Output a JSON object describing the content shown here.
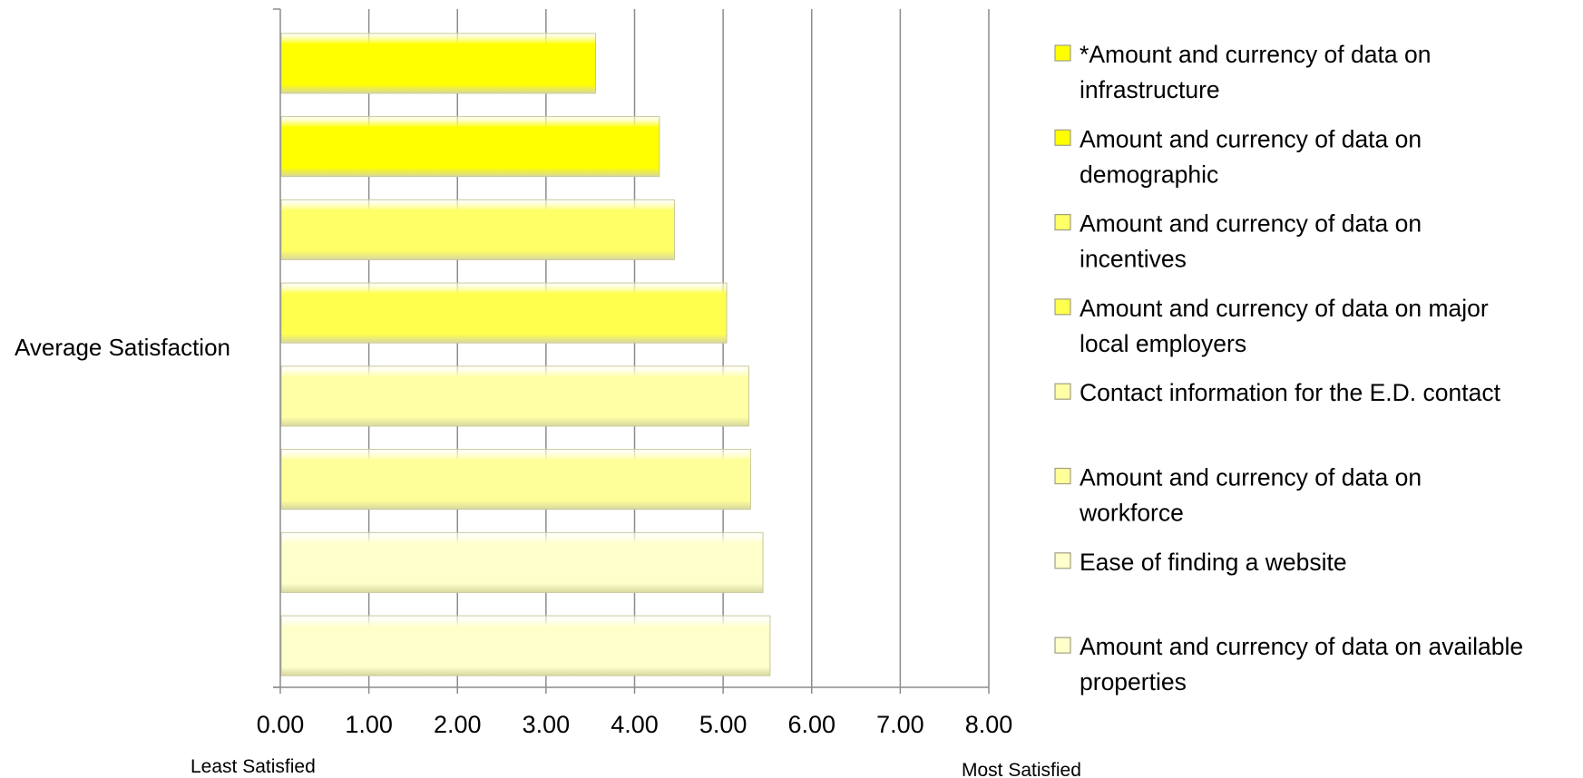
{
  "chart_data": {
    "type": "bar",
    "orientation": "horizontal",
    "title": "",
    "ylabel": "Average Satisfaction",
    "xlabel_left": "Least Satisfied",
    "xlabel_right": "Most Satisfied",
    "xlim": [
      0,
      8
    ],
    "x_ticks": [
      "0.00",
      "1.00",
      "2.00",
      "3.00",
      "4.00",
      "5.00",
      "6.00",
      "7.00",
      "8.00"
    ],
    "grid": "vertical",
    "legend_position": "right",
    "series": [
      {
        "name": "*Amount and currency of data on infrastructure",
        "value": 3.55,
        "color": "#ffff00"
      },
      {
        "name": "Amount and currency of data on demographic",
        "value": 4.27,
        "color": "#ffff00"
      },
      {
        "name": "Amount and currency of data on incentives",
        "value": 4.44,
        "color": "#ffff66"
      },
      {
        "name": "Amount and currency of data on major local employers",
        "value": 5.03,
        "color": "#ffff4d"
      },
      {
        "name": "Contact information for the E.D. contact",
        "value": 5.28,
        "color": "#ffffa6"
      },
      {
        "name": "Amount and currency of data on workforce",
        "value": 5.3,
        "color": "#ffff99"
      },
      {
        "name": "Ease of finding a website",
        "value": 5.44,
        "color": "#ffffcc"
      },
      {
        "name": "Amount and currency of data on available properties",
        "value": 5.52,
        "color": "#ffffcc"
      }
    ]
  }
}
